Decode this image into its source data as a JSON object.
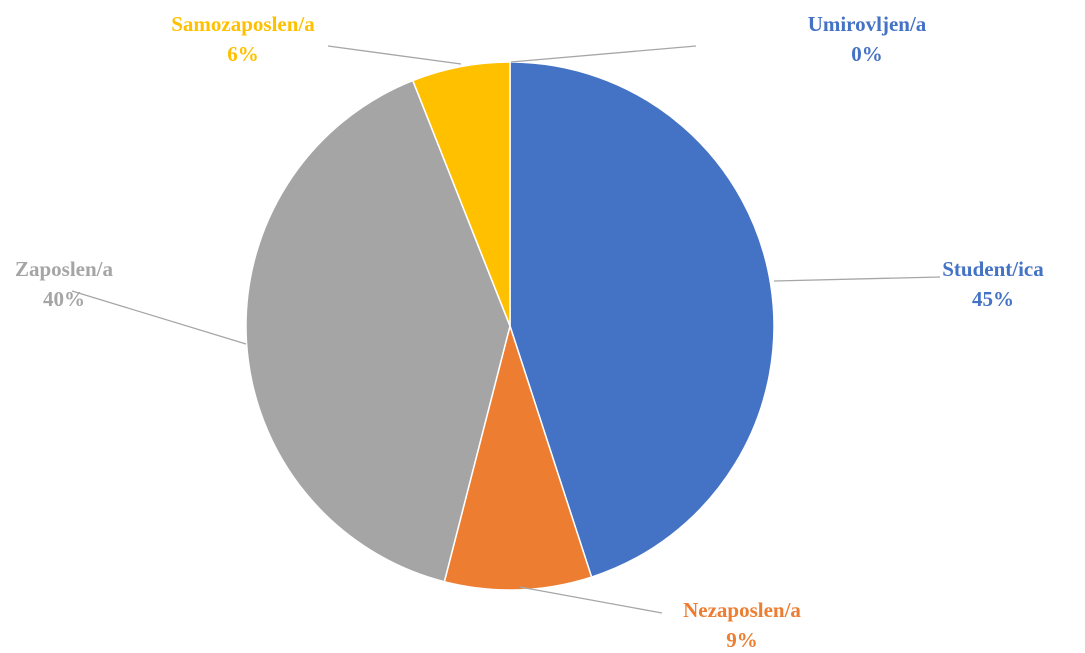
{
  "chart_data": {
    "type": "pie",
    "categories": [
      "Student/ica",
      "Nezaposlen/a",
      "Zaposlen/a",
      "Samozaposlen/a",
      "Umirovljen/a"
    ],
    "values": [
      45,
      9,
      40,
      6,
      0
    ],
    "value_labels": [
      "45%",
      "9%",
      "40%",
      "6%",
      "0%"
    ],
    "colors": [
      "#4472c4",
      "#ed7d31",
      "#a5a5a5",
      "#ffc000",
      "#4472c4"
    ]
  }
}
